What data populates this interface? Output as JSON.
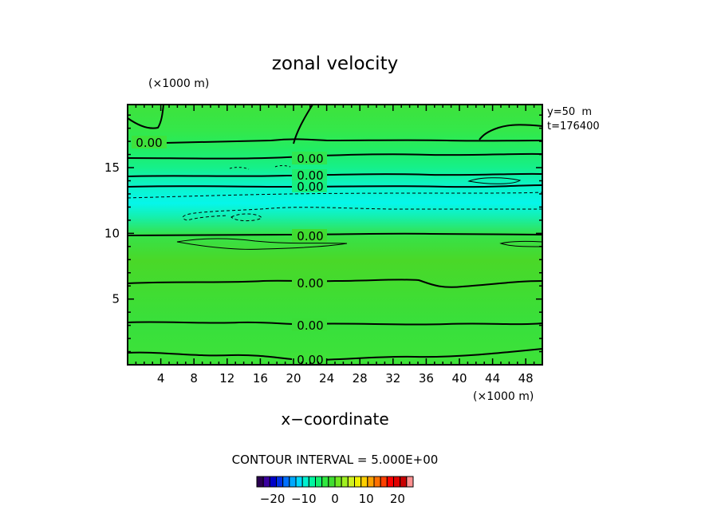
{
  "chart_data": {
    "type": "heatmap",
    "title": "zonal velocity",
    "xlabel": "x−coordinate",
    "x_unit": "(×1000 m)",
    "y_unit": "(×1000 m)",
    "xlim": [
      0,
      50
    ],
    "ylim": [
      0,
      19.8
    ],
    "x_ticks": [
      "4",
      "8",
      "12",
      "16",
      "20",
      "24",
      "28",
      "32",
      "36",
      "40",
      "44",
      "48"
    ],
    "y_ticks": [
      "5",
      "10",
      "15"
    ],
    "info_lines": [
      "y=50  m",
      "t=176400"
    ],
    "contour_interval_text": "CONTOUR INTERVAL = 5.000E+00",
    "contour_labels": [
      "0.00",
      "0.00",
      "0.00",
      "0.00",
      "0.00",
      "0.00",
      "0.00",
      "0.00"
    ],
    "colorbar": {
      "ticks": [
        "−20",
        "−10",
        "0",
        "10",
        "20"
      ],
      "tick_values": [
        -20,
        -10,
        0,
        10,
        20
      ],
      "range": [
        -25,
        25
      ],
      "colors": [
        "#2a0050",
        "#3a00a0",
        "#0000c8",
        "#0030e6",
        "#0070ff",
        "#00a8ff",
        "#00d8ff",
        "#00f0d0",
        "#00f5a0",
        "#10f070",
        "#30e840",
        "#40dd30",
        "#70e820",
        "#a0f020",
        "#d0f020",
        "#f0f000",
        "#ffd000",
        "#ffa000",
        "#ff7000",
        "#ff4000",
        "#ff0000",
        "#e00000",
        "#c80000",
        "#ff9090"
      ]
    }
  }
}
